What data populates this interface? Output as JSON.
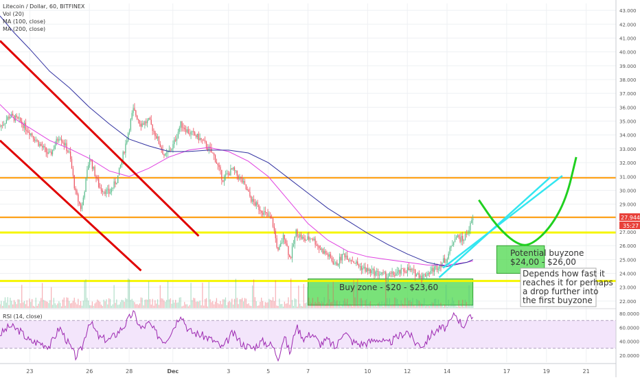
{
  "legend": {
    "symbol": "Litecoin / Dollar, 60, BITFINEX",
    "vol": "Vol (20)",
    "ma100": "MA (100, close)",
    "ma200": "MA (200, close)"
  },
  "rsi_label": "RSI (14, close)",
  "colors": {
    "up": "#53b987",
    "down": "#eb4d5c",
    "ma100": "#e040e0",
    "ma200": "#3030a0",
    "red_channel": "#e00000",
    "orange": "#ff9800",
    "yellow": "#f5f500",
    "cyan": "#33e6f0",
    "green_curve": "#20d020",
    "buy_zone": "#4cd84c",
    "rsi_line": "#9c27b0",
    "rsi_band": "#f3e5fb"
  },
  "annotations": {
    "buy_zone": "Buy zone - $20 - $23,60",
    "potential_line1": "Potential buyzone",
    "potential_line2": "$24,00 - $26,00",
    "note_line1": "Depends how fast it",
    "note_line2": "reaches it for perhaps",
    "note_line3": "a drop further into",
    "note_line4": "the first buyzone"
  },
  "price_badge": {
    "price": "27.944",
    "timer": "35:27"
  },
  "chart_data": [
    {
      "type": "candlestick",
      "title": "Litecoin / Dollar, 60, BITFINEX",
      "ylim": [
        21.5,
        43.5
      ],
      "y_ticks": [
        "22.000",
        "23.000",
        "24.000",
        "25.000",
        "26.000",
        "27.000",
        "28.000",
        "29.000",
        "30.000",
        "31.000",
        "32.000",
        "33.000",
        "34.000",
        "35.000",
        "36.000",
        "37.000",
        "38.000",
        "39.000",
        "40.000",
        "41.000",
        "42.000",
        "43.000"
      ],
      "x_labels": [
        "23",
        "26",
        "28",
        "Dec",
        "3",
        "5",
        "7",
        "10",
        "12",
        "14",
        "17",
        "19",
        "21"
      ],
      "x_label_days": [
        23,
        26,
        28,
        30.2,
        33,
        35,
        37,
        40,
        42,
        44,
        47,
        49,
        51
      ],
      "x_range_days": [
        21.5,
        52.5
      ],
      "close_path": [
        [
          21.5,
          34.6
        ],
        [
          22.0,
          35.4
        ],
        [
          22.5,
          35.0
        ],
        [
          23.0,
          34.2
        ],
        [
          23.5,
          33.3
        ],
        [
          24.0,
          32.5
        ],
        [
          24.5,
          34.0
        ],
        [
          25.0,
          32.6
        ],
        [
          25.3,
          29.8
        ],
        [
          25.6,
          28.6
        ],
        [
          26.0,
          32.4
        ],
        [
          26.5,
          30.2
        ],
        [
          27.0,
          29.8
        ],
        [
          27.4,
          30.8
        ],
        [
          27.8,
          33.2
        ],
        [
          28.2,
          35.8
        ],
        [
          28.6,
          34.8
        ],
        [
          29.0,
          35.0
        ],
        [
          29.4,
          33.8
        ],
        [
          29.8,
          32.4
        ],
        [
          30.2,
          33.2
        ],
        [
          30.6,
          34.8
        ],
        [
          31.0,
          34.2
        ],
        [
          31.5,
          33.8
        ],
        [
          31.9,
          33.2
        ],
        [
          32.3,
          32.4
        ],
        [
          32.7,
          30.8
        ],
        [
          33.2,
          31.5
        ],
        [
          33.7,
          30.6
        ],
        [
          34.2,
          29.2
        ],
        [
          34.7,
          28.5
        ],
        [
          35.2,
          27.8
        ],
        [
          35.5,
          25.5
        ],
        [
          35.8,
          26.8
        ],
        [
          36.1,
          25.0
        ],
        [
          36.4,
          27.0
        ],
        [
          36.8,
          26.4
        ],
        [
          37.2,
          26.6
        ],
        [
          37.6,
          25.8
        ],
        [
          38.0,
          25.3
        ],
        [
          38.4,
          24.6
        ],
        [
          38.8,
          25.4
        ],
        [
          39.2,
          25.0
        ],
        [
          39.6,
          24.5
        ],
        [
          40.0,
          24.2
        ],
        [
          40.5,
          24.0
        ],
        [
          41.0,
          23.8
        ],
        [
          41.5,
          24.0
        ],
        [
          42.0,
          24.3
        ],
        [
          42.4,
          24.0
        ],
        [
          42.8,
          23.8
        ],
        [
          43.2,
          24.2
        ],
        [
          43.6,
          24.6
        ],
        [
          44.0,
          25.1
        ],
        [
          44.4,
          26.7
        ],
        [
          44.8,
          26.4
        ],
        [
          45.1,
          27.2
        ],
        [
          45.3,
          27.944
        ]
      ],
      "ma100_path": [
        [
          21.5,
          36.2
        ],
        [
          22.2,
          35.2
        ],
        [
          23.0,
          34.5
        ],
        [
          24.0,
          33.6
        ],
        [
          25.0,
          33.0
        ],
        [
          26.0,
          32.3
        ],
        [
          27.0,
          31.4
        ],
        [
          28.0,
          31.0
        ],
        [
          29.0,
          31.6
        ],
        [
          30.0,
          32.4
        ],
        [
          31.0,
          32.9
        ],
        [
          32.0,
          33.1
        ],
        [
          33.0,
          32.8
        ],
        [
          34.0,
          32.1
        ],
        [
          35.0,
          31.0
        ],
        [
          36.0,
          29.3
        ],
        [
          37.0,
          27.6
        ],
        [
          38.0,
          26.4
        ],
        [
          39.0,
          25.6
        ],
        [
          40.0,
          25.2
        ],
        [
          41.0,
          25.0
        ],
        [
          42.0,
          24.8
        ],
        [
          43.0,
          24.6
        ],
        [
          44.0,
          24.6
        ],
        [
          45.0,
          24.8
        ],
        [
          45.3,
          24.9
        ]
      ],
      "ma200_path": [
        [
          21.5,
          42.6
        ],
        [
          22.2,
          41.4
        ],
        [
          23.0,
          40.2
        ],
        [
          24.0,
          38.6
        ],
        [
          25.0,
          37.4
        ],
        [
          26.0,
          36.0
        ],
        [
          27.0,
          34.8
        ],
        [
          28.0,
          33.7
        ],
        [
          29.0,
          33.2
        ],
        [
          30.0,
          32.8
        ],
        [
          31.0,
          32.8
        ],
        [
          32.0,
          32.9
        ],
        [
          33.0,
          32.9
        ],
        [
          34.0,
          32.7
        ],
        [
          35.0,
          32.0
        ],
        [
          36.0,
          30.9
        ],
        [
          37.0,
          29.8
        ],
        [
          38.0,
          28.7
        ],
        [
          39.0,
          27.8
        ],
        [
          40.0,
          26.9
        ],
        [
          41.0,
          26.1
        ],
        [
          42.0,
          25.4
        ],
        [
          43.0,
          24.8
        ],
        [
          44.0,
          24.5
        ],
        [
          45.0,
          24.8
        ],
        [
          45.3,
          25.0
        ]
      ],
      "horizontal_levels": [
        {
          "price": 30.9,
          "color": "orange"
        },
        {
          "price": 28.05,
          "color": "orange"
        },
        {
          "price": 26.95,
          "color": "yellow"
        },
        {
          "price": 23.45,
          "color": "yellow"
        }
      ],
      "red_channel": [
        {
          "from": [
            21.5,
            40.8
          ],
          "to": [
            31.5,
            26.7
          ]
        },
        {
          "from": [
            21.5,
            33.6
          ],
          "to": [
            28.6,
            24.2
          ]
        }
      ],
      "cyan_channel": [
        {
          "from": [
            43.6,
            23.7
          ],
          "to": [
            49.2,
            30.95
          ]
        },
        {
          "from": [
            43.8,
            24.4
          ],
          "to": [
            49.8,
            31.05
          ]
        }
      ],
      "zones": [
        {
          "name": "buy",
          "price_range": [
            21.7,
            23.6
          ],
          "day_range": [
            37.0,
            45.3
          ]
        },
        {
          "name": "potential",
          "price_range": [
            24.0,
            26.0
          ],
          "day_range": [
            46.5,
            48.9
          ]
        }
      ],
      "green_curve": [
        [
          45.6,
          29.3
        ],
        [
          46.5,
          27.4
        ],
        [
          47.5,
          26.1
        ],
        [
          48.2,
          26.0
        ],
        [
          49.2,
          27.3
        ],
        [
          50.0,
          29.4
        ],
        [
          50.5,
          32.4
        ]
      ]
    },
    {
      "type": "line",
      "title": "RSI (14, close)",
      "ylim": [
        10,
        85
      ],
      "y_ticks": [
        "20.0000",
        "40.0000",
        "60.0000",
        "80.0000"
      ],
      "band": [
        30,
        70
      ],
      "path": [
        [
          21.5,
          50
        ],
        [
          22.0,
          62
        ],
        [
          22.5,
          55
        ],
        [
          23.0,
          40
        ],
        [
          23.5,
          38
        ],
        [
          24.0,
          33
        ],
        [
          24.5,
          60
        ],
        [
          25.0,
          34
        ],
        [
          25.3,
          18
        ],
        [
          25.6,
          28
        ],
        [
          26.0,
          70
        ],
        [
          26.5,
          45
        ],
        [
          27.0,
          42
        ],
        [
          27.4,
          52
        ],
        [
          27.8,
          64
        ],
        [
          28.2,
          82
        ],
        [
          28.6,
          58
        ],
        [
          29.0,
          66
        ],
        [
          29.4,
          50
        ],
        [
          29.8,
          40
        ],
        [
          30.2,
          58
        ],
        [
          30.6,
          80
        ],
        [
          31.0,
          55
        ],
        [
          31.5,
          50
        ],
        [
          31.9,
          46
        ],
        [
          32.3,
          40
        ],
        [
          32.7,
          30
        ],
        [
          33.2,
          52
        ],
        [
          33.7,
          36
        ],
        [
          34.2,
          30
        ],
        [
          34.7,
          40
        ],
        [
          35.2,
          34
        ],
        [
          35.5,
          16
        ],
        [
          35.8,
          48
        ],
        [
          36.1,
          22
        ],
        [
          36.4,
          62
        ],
        [
          36.8,
          44
        ],
        [
          37.2,
          52
        ],
        [
          37.6,
          36
        ],
        [
          38.0,
          42
        ],
        [
          38.4,
          30
        ],
        [
          38.8,
          56
        ],
        [
          39.2,
          40
        ],
        [
          39.6,
          36
        ],
        [
          40.0,
          38
        ],
        [
          40.5,
          44
        ],
        [
          41.0,
          36
        ],
        [
          41.5,
          46
        ],
        [
          42.0,
          55
        ],
        [
          42.4,
          38
        ],
        [
          42.8,
          34
        ],
        [
          43.2,
          50
        ],
        [
          43.6,
          58
        ],
        [
          44.0,
          60
        ],
        [
          44.4,
          80
        ],
        [
          44.8,
          62
        ],
        [
          45.1,
          72
        ],
        [
          45.3,
          75
        ]
      ]
    }
  ]
}
